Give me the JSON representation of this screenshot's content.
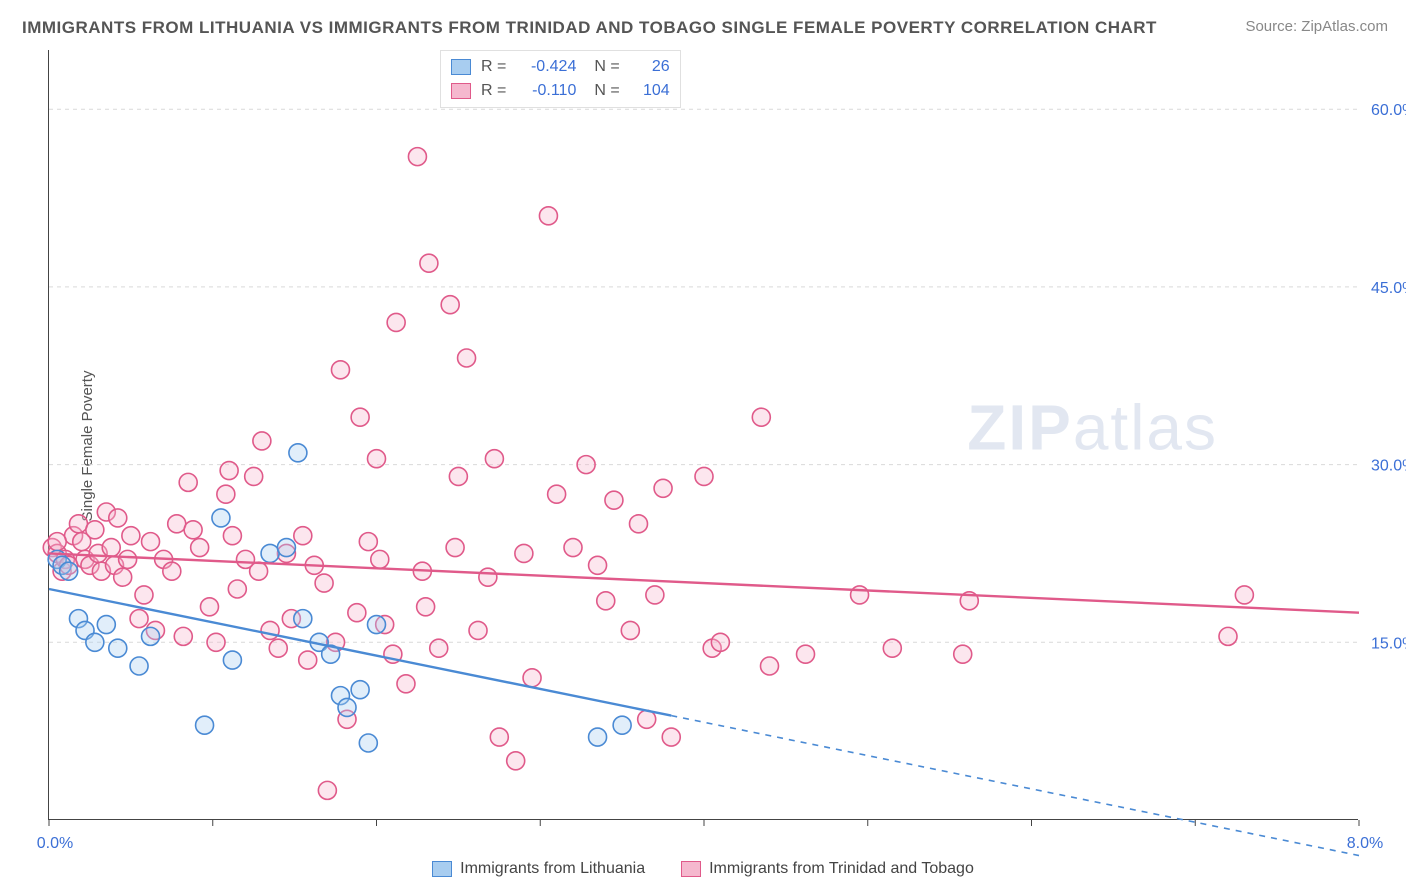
{
  "title": "IMMIGRANTS FROM LITHUANIA VS IMMIGRANTS FROM TRINIDAD AND TOBAGO SINGLE FEMALE POVERTY CORRELATION CHART",
  "source": "Source: ZipAtlas.com",
  "y_axis_label": "Single Female Poverty",
  "watermark_bold": "ZIP",
  "watermark_light": "atlas",
  "chart": {
    "type": "scatter",
    "xlim": [
      0,
      8
    ],
    "ylim": [
      0,
      65
    ],
    "x_ticks": [
      0,
      1,
      2,
      3,
      4,
      5,
      6,
      7,
      8
    ],
    "x_tick_labels_shown": {
      "0": "0.0%",
      "8": "8.0%"
    },
    "y_ticks": [
      15,
      30,
      45,
      60
    ],
    "y_tick_labels": [
      "15.0%",
      "30.0%",
      "45.0%",
      "60.0%"
    ],
    "grid_color": "#d9d9d9",
    "background_color": "#ffffff",
    "axis_label_color": "#3b6fd6",
    "marker_radius": 9,
    "series": [
      {
        "id": "lithuania",
        "label": "Immigrants from Lithuania",
        "color_stroke": "#4a8ad4",
        "color_fill": "#a8cdf0",
        "R": "-0.424",
        "N": "26",
        "trend": {
          "y_at_x0": 19.5,
          "y_at_x8": -3.0,
          "dashed_after_x": 3.8
        },
        "points": [
          [
            0.05,
            22.0
          ],
          [
            0.08,
            21.5
          ],
          [
            0.12,
            21.0
          ],
          [
            0.18,
            17.0
          ],
          [
            0.22,
            16.0
          ],
          [
            0.28,
            15.0
          ],
          [
            0.35,
            16.5
          ],
          [
            0.42,
            14.5
          ],
          [
            0.55,
            13.0
          ],
          [
            0.62,
            15.5
          ],
          [
            0.95,
            8.0
          ],
          [
            1.05,
            25.5
          ],
          [
            1.12,
            13.5
          ],
          [
            1.35,
            22.5
          ],
          [
            1.45,
            23.0
          ],
          [
            1.52,
            31.0
          ],
          [
            1.55,
            17.0
          ],
          [
            1.65,
            15.0
          ],
          [
            1.72,
            14.0
          ],
          [
            1.78,
            10.5
          ],
          [
            1.82,
            9.5
          ],
          [
            1.9,
            11.0
          ],
          [
            2.0,
            16.5
          ],
          [
            1.95,
            6.5
          ],
          [
            3.35,
            7.0
          ],
          [
            3.5,
            8.0
          ]
        ]
      },
      {
        "id": "trinidad",
        "label": "Immigrants from Trinidad and Tobago",
        "color_stroke": "#e05a8a",
        "color_fill": "#f5b8ce",
        "R": "-0.110",
        "N": "104",
        "trend": {
          "y_at_x0": 22.5,
          "y_at_x8": 17.5,
          "dashed_after_x": 8.0
        },
        "points": [
          [
            0.02,
            23.0
          ],
          [
            0.05,
            22.5
          ],
          [
            0.08,
            21.0
          ],
          [
            0.1,
            22.0
          ],
          [
            0.12,
            21.5
          ],
          [
            0.15,
            24.0
          ],
          [
            0.18,
            25.0
          ],
          [
            0.2,
            23.5
          ],
          [
            0.22,
            22.0
          ],
          [
            0.25,
            21.5
          ],
          [
            0.28,
            24.5
          ],
          [
            0.3,
            22.5
          ],
          [
            0.32,
            21.0
          ],
          [
            0.35,
            26.0
          ],
          [
            0.38,
            23.0
          ],
          [
            0.4,
            21.5
          ],
          [
            0.42,
            25.5
          ],
          [
            0.45,
            20.5
          ],
          [
            0.48,
            22.0
          ],
          [
            0.5,
            24.0
          ],
          [
            0.55,
            17.0
          ],
          [
            0.58,
            19.0
          ],
          [
            0.62,
            23.5
          ],
          [
            0.65,
            16.0
          ],
          [
            0.7,
            22.0
          ],
          [
            0.75,
            21.0
          ],
          [
            0.78,
            25.0
          ],
          [
            0.82,
            15.5
          ],
          [
            0.85,
            28.5
          ],
          [
            0.88,
            24.5
          ],
          [
            0.92,
            23.0
          ],
          [
            0.98,
            18.0
          ],
          [
            1.02,
            15.0
          ],
          [
            1.08,
            27.5
          ],
          [
            1.1,
            29.5
          ],
          [
            1.12,
            24.0
          ],
          [
            1.15,
            19.5
          ],
          [
            1.2,
            22.0
          ],
          [
            1.25,
            29.0
          ],
          [
            1.28,
            21.0
          ],
          [
            1.3,
            32.0
          ],
          [
            1.35,
            16.0
          ],
          [
            1.4,
            14.5
          ],
          [
            1.45,
            22.5
          ],
          [
            1.48,
            17.0
          ],
          [
            1.55,
            24.0
          ],
          [
            1.58,
            13.5
          ],
          [
            1.62,
            21.5
          ],
          [
            1.68,
            20.0
          ],
          [
            1.7,
            2.5
          ],
          [
            1.75,
            15.0
          ],
          [
            1.78,
            38.0
          ],
          [
            1.82,
            8.5
          ],
          [
            1.88,
            17.5
          ],
          [
            1.9,
            34.0
          ],
          [
            1.95,
            23.5
          ],
          [
            2.0,
            30.5
          ],
          [
            2.02,
            22.0
          ],
          [
            2.05,
            16.5
          ],
          [
            2.1,
            14.0
          ],
          [
            2.12,
            42.0
          ],
          [
            2.18,
            11.5
          ],
          [
            2.25,
            56.0
          ],
          [
            2.28,
            21.0
          ],
          [
            2.3,
            18.0
          ],
          [
            2.32,
            47.0
          ],
          [
            2.38,
            14.5
          ],
          [
            2.45,
            43.5
          ],
          [
            2.48,
            23.0
          ],
          [
            2.5,
            29.0
          ],
          [
            2.55,
            39.0
          ],
          [
            2.62,
            16.0
          ],
          [
            2.68,
            20.5
          ],
          [
            2.72,
            30.5
          ],
          [
            2.75,
            7.0
          ],
          [
            2.85,
            5.0
          ],
          [
            2.9,
            22.5
          ],
          [
            2.95,
            12.0
          ],
          [
            3.05,
            51.0
          ],
          [
            3.1,
            27.5
          ],
          [
            3.2,
            23.0
          ],
          [
            3.28,
            30.0
          ],
          [
            3.35,
            21.5
          ],
          [
            3.4,
            18.5
          ],
          [
            3.45,
            27.0
          ],
          [
            3.55,
            16.0
          ],
          [
            3.6,
            25.0
          ],
          [
            3.65,
            8.5
          ],
          [
            3.7,
            19.0
          ],
          [
            3.75,
            28.0
          ],
          [
            3.8,
            7.0
          ],
          [
            4.0,
            29.0
          ],
          [
            4.05,
            14.5
          ],
          [
            4.1,
            15.0
          ],
          [
            4.35,
            34.0
          ],
          [
            4.4,
            13.0
          ],
          [
            4.62,
            14.0
          ],
          [
            4.95,
            19.0
          ],
          [
            5.15,
            14.5
          ],
          [
            5.58,
            14.0
          ],
          [
            5.62,
            18.5
          ],
          [
            7.2,
            15.5
          ],
          [
            7.3,
            19.0
          ],
          [
            0.05,
            23.5
          ]
        ]
      }
    ]
  }
}
